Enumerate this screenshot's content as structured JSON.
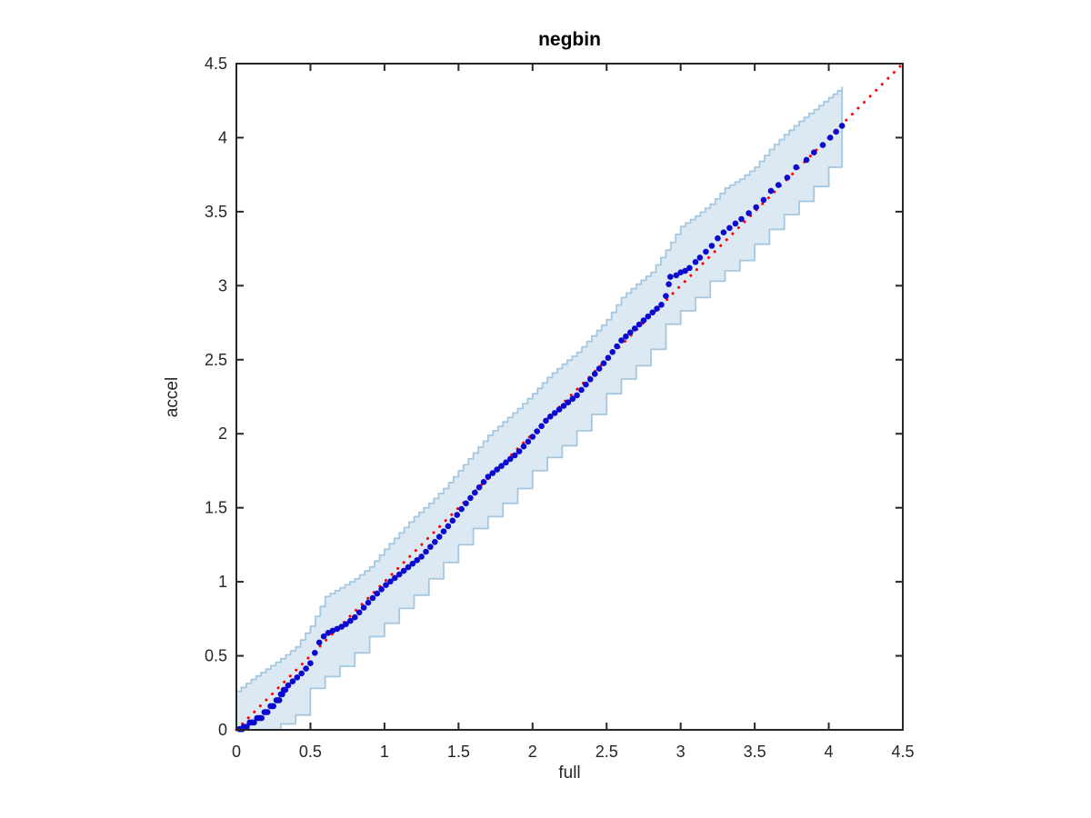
{
  "figure": {
    "title": "negbin",
    "xlabel": "full",
    "ylabel": "accel"
  },
  "chart_data": {
    "type": "scatter",
    "title": "negbin",
    "xlabel": "full",
    "ylabel": "accel",
    "xlim": [
      0,
      4.5
    ],
    "ylim": [
      0,
      4.5
    ],
    "grid": false,
    "tick_values": [
      0,
      0.5,
      1,
      1.5,
      2,
      2.5,
      3,
      3.5,
      4,
      4.5
    ],
    "tick_labels": [
      "0",
      "0.5",
      "1",
      "1.5",
      "2",
      "2.5",
      "3",
      "3.5",
      "4",
      "4.5"
    ],
    "colors": {
      "axis": "#262626",
      "tick_label": "#262626",
      "band_fill": "#dce8f2",
      "band_edge": "#a5c8e0",
      "points": "#0b0bcf",
      "reference_line": "#ff0000",
      "background": "#ffffff"
    },
    "reference_line": {
      "x": [
        0,
        4.5
      ],
      "y": [
        0,
        4.5
      ],
      "style": "dotted"
    },
    "band": {
      "x": [
        0.0,
        0.1,
        0.2,
        0.3,
        0.4,
        0.5,
        0.6,
        0.7,
        0.8,
        0.9,
        1.0,
        1.1,
        1.2,
        1.3,
        1.4,
        1.5,
        1.6,
        1.7,
        1.8,
        1.9,
        2.0,
        2.1,
        2.2,
        2.3,
        2.4,
        2.5,
        2.6,
        2.7,
        2.8,
        2.9,
        3.0,
        3.1,
        3.2,
        3.3,
        3.4,
        3.5,
        3.6,
        3.7,
        3.8,
        3.9,
        4.0,
        4.09
      ],
      "lower": [
        0.0,
        0.0,
        0.0,
        0.0,
        0.04,
        0.1,
        0.28,
        0.36,
        0.43,
        0.52,
        0.63,
        0.72,
        0.82,
        0.91,
        1.02,
        1.13,
        1.25,
        1.36,
        1.44,
        1.53,
        1.63,
        1.75,
        1.84,
        1.92,
        2.02,
        2.13,
        2.27,
        2.37,
        2.46,
        2.57,
        2.74,
        2.83,
        2.92,
        3.03,
        3.1,
        3.17,
        3.28,
        3.38,
        3.48,
        3.57,
        3.67,
        3.8
      ],
      "upper": [
        0.26,
        0.34,
        0.41,
        0.48,
        0.56,
        0.7,
        0.9,
        0.96,
        1.02,
        1.1,
        1.22,
        1.33,
        1.44,
        1.53,
        1.63,
        1.75,
        1.87,
        1.99,
        2.08,
        2.17,
        2.27,
        2.38,
        2.47,
        2.55,
        2.66,
        2.77,
        2.92,
        3.01,
        3.09,
        3.24,
        3.4,
        3.47,
        3.55,
        3.66,
        3.72,
        3.8,
        3.92,
        4.02,
        4.11,
        4.19,
        4.27,
        4.34
      ]
    },
    "points": [
      [
        0.02,
        0.005
      ],
      [
        0.03,
        0.005
      ],
      [
        0.04,
        0.005
      ],
      [
        0.05,
        0.02
      ],
      [
        0.06,
        0.02
      ],
      [
        0.07,
        0.02
      ],
      [
        0.09,
        0.05
      ],
      [
        0.1,
        0.05
      ],
      [
        0.11,
        0.05
      ],
      [
        0.12,
        0.05
      ],
      [
        0.14,
        0.08
      ],
      [
        0.15,
        0.08
      ],
      [
        0.16,
        0.08
      ],
      [
        0.17,
        0.08
      ],
      [
        0.19,
        0.12
      ],
      [
        0.2,
        0.12
      ],
      [
        0.21,
        0.12
      ],
      [
        0.23,
        0.16
      ],
      [
        0.24,
        0.16
      ],
      [
        0.25,
        0.16
      ],
      [
        0.27,
        0.2
      ],
      [
        0.28,
        0.2
      ],
      [
        0.29,
        0.2
      ],
      [
        0.3,
        0.24
      ],
      [
        0.31,
        0.24
      ],
      [
        0.32,
        0.27
      ],
      [
        0.33,
        0.27
      ],
      [
        0.35,
        0.3
      ],
      [
        0.38,
        0.327
      ],
      [
        0.41,
        0.354
      ],
      [
        0.44,
        0.381
      ],
      [
        0.47,
        0.414
      ],
      [
        0.5,
        0.45
      ],
      [
        0.53,
        0.52
      ],
      [
        0.56,
        0.59
      ],
      [
        0.59,
        0.631
      ],
      [
        0.62,
        0.655
      ],
      [
        0.65,
        0.67
      ],
      [
        0.68,
        0.682
      ],
      [
        0.71,
        0.696
      ],
      [
        0.74,
        0.714
      ],
      [
        0.77,
        0.736
      ],
      [
        0.8,
        0.76
      ],
      [
        0.83,
        0.793
      ],
      [
        0.86,
        0.826
      ],
      [
        0.89,
        0.859
      ],
      [
        0.92,
        0.89
      ],
      [
        0.95,
        0.92
      ],
      [
        0.98,
        0.95
      ],
      [
        1.01,
        0.978
      ],
      [
        1.04,
        1.002
      ],
      [
        1.07,
        1.026
      ],
      [
        1.1,
        1.05
      ],
      [
        1.13,
        1.074
      ],
      [
        1.16,
        1.098
      ],
      [
        1.19,
        1.122
      ],
      [
        1.22,
        1.146
      ],
      [
        1.25,
        1.17
      ],
      [
        1.28,
        1.203
      ],
      [
        1.31,
        1.236
      ],
      [
        1.34,
        1.269
      ],
      [
        1.37,
        1.304
      ],
      [
        1.4,
        1.34
      ],
      [
        1.43,
        1.376
      ],
      [
        1.46,
        1.413
      ],
      [
        1.49,
        1.452
      ],
      [
        1.52,
        1.491
      ],
      [
        1.55,
        1.53
      ],
      [
        1.58,
        1.566
      ],
      [
        1.61,
        1.602
      ],
      [
        1.64,
        1.638
      ],
      [
        1.67,
        1.674
      ],
      [
        1.7,
        1.71
      ],
      [
        1.73,
        1.734
      ],
      [
        1.76,
        1.758
      ],
      [
        1.79,
        1.782
      ],
      [
        1.82,
        1.806
      ],
      [
        1.85,
        1.83
      ],
      [
        1.88,
        1.854
      ],
      [
        1.91,
        1.881
      ],
      [
        1.94,
        1.914
      ],
      [
        1.97,
        1.947
      ],
      [
        2.0,
        1.98
      ],
      [
        2.03,
        2.016
      ],
      [
        2.06,
        2.052
      ],
      [
        2.09,
        2.088
      ],
      [
        2.12,
        2.116
      ],
      [
        2.15,
        2.14
      ],
      [
        2.18,
        2.164
      ],
      [
        2.21,
        2.188
      ],
      [
        2.24,
        2.212
      ],
      [
        2.27,
        2.236
      ],
      [
        2.3,
        2.26
      ],
      [
        2.33,
        2.296
      ],
      [
        2.36,
        2.332
      ],
      [
        2.39,
        2.368
      ],
      [
        2.42,
        2.404
      ],
      [
        2.45,
        2.44
      ],
      [
        2.48,
        2.476
      ],
      [
        2.51,
        2.513
      ],
      [
        2.54,
        2.552
      ],
      [
        2.57,
        2.591
      ],
      [
        2.6,
        2.63
      ],
      [
        2.63,
        2.657
      ],
      [
        2.66,
        2.684
      ],
      [
        2.69,
        2.711
      ],
      [
        2.72,
        2.738
      ],
      [
        2.75,
        2.765
      ],
      [
        2.78,
        2.792
      ],
      [
        2.81,
        2.819
      ],
      [
        2.84,
        2.845
      ],
      [
        2.87,
        2.871
      ],
      [
        2.9,
        2.93
      ],
      [
        2.92,
        3.01
      ],
      [
        2.93,
        3.06
      ],
      [
        2.97,
        3.07
      ],
      [
        3.0,
        3.09
      ],
      [
        3.03,
        3.1
      ],
      [
        3.06,
        3.12
      ],
      [
        3.1,
        3.16
      ],
      [
        3.13,
        3.19
      ],
      [
        3.17,
        3.23
      ],
      [
        3.21,
        3.27
      ],
      [
        3.25,
        3.32
      ],
      [
        3.29,
        3.36
      ],
      [
        3.33,
        3.39
      ],
      [
        3.37,
        3.42
      ],
      [
        3.41,
        3.45
      ],
      [
        3.46,
        3.49
      ],
      [
        3.51,
        3.53
      ],
      [
        3.56,
        3.58
      ],
      [
        3.61,
        3.64
      ],
      [
        3.66,
        3.68
      ],
      [
        3.72,
        3.73
      ],
      [
        3.78,
        3.8
      ],
      [
        3.85,
        3.85
      ],
      [
        3.9,
        3.9
      ],
      [
        3.96,
        3.95
      ],
      [
        4.01,
        4.0
      ],
      [
        4.05,
        4.04
      ],
      [
        4.09,
        4.08
      ]
    ]
  }
}
